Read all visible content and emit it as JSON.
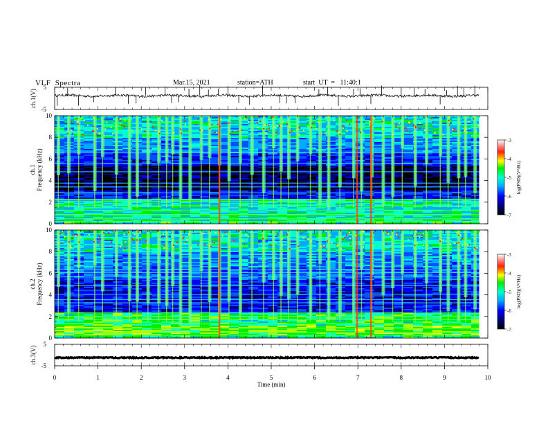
{
  "header": {
    "title": "VLF  Spectra",
    "date": "Mar.15, 2021",
    "station": "station=ATH",
    "start": "start  UT  =   11:40:1"
  },
  "chart_data": {
    "type": "heatmap",
    "xlabel": "Time  (min)",
    "x_ticks": [
      "0",
      "1",
      "2",
      "3",
      "4",
      "5",
      "6",
      "7",
      "8",
      "9",
      "10"
    ],
    "xlim": [
      0,
      10
    ],
    "data_end_min": 9.8,
    "panels": [
      {
        "id": "ch1-waveform",
        "type": "line",
        "ylabel": "ch.1(V)",
        "ylim": [
          -5,
          5
        ],
        "y_ticks": [
          "5",
          "-5"
        ],
        "baseline_v": 1.2,
        "spike_times_min": [
          0.06,
          0.3,
          0.55,
          0.9,
          1.4,
          1.7,
          1.88,
          2.1,
          2.55,
          2.7,
          2.85,
          3.1,
          3.35,
          3.55,
          3.78,
          4.0,
          4.25,
          4.5,
          4.8,
          5.2,
          5.35,
          5.55,
          6.1,
          6.3,
          6.55,
          6.9,
          7.05,
          7.3,
          7.55,
          8.0,
          8.3,
          8.55,
          8.9,
          9.05,
          9.3,
          9.45,
          9.7
        ]
      },
      {
        "id": "ch1-spectrogram",
        "type": "heatmap",
        "ylabel": "Frequency  (kHz)",
        "channel_label": "ch.1",
        "ylim": [
          0,
          10
        ],
        "y_ticks": [
          "0",
          "2",
          "4",
          "6",
          "8",
          "10"
        ],
        "colorbar": {
          "label": "log(PSD)(V²/Hz)",
          "range": [
            -7,
            -3
          ],
          "ticks": [
            "-3",
            "-4",
            "-5",
            "-6",
            "-7"
          ]
        },
        "bursts_min": [
          0.08,
          0.32,
          0.55,
          0.92,
          1.1,
          1.42,
          1.72,
          1.9,
          2.15,
          2.4,
          2.58,
          2.72,
          2.9,
          3.12,
          3.38,
          3.57,
          3.8,
          4.02,
          4.28,
          4.55,
          4.82,
          5.05,
          5.22,
          5.4,
          5.6,
          5.9,
          6.12,
          6.32,
          6.58,
          6.9,
          7.08,
          7.32,
          7.58,
          7.8,
          8.02,
          8.32,
          8.58,
          8.9,
          9.08,
          9.32,
          9.48,
          9.7
        ],
        "strong_lines_min": [
          3.8,
          6.98,
          7.3
        ]
      },
      {
        "id": "ch2-spectrogram",
        "type": "heatmap",
        "ylabel": "Frequency  (kHz)",
        "channel_label": "ch.2",
        "ylim": [
          0,
          10
        ],
        "y_ticks": [
          "0",
          "2",
          "4",
          "6",
          "8",
          "10"
        ],
        "colorbar": {
          "label": "log(PSD)(V²/Hz)",
          "range": [
            -7,
            -3
          ],
          "ticks": [
            "-3",
            "-4",
            "-5",
            "-6",
            "-7"
          ]
        },
        "bursts_min": [
          0.08,
          0.32,
          0.55,
          0.92,
          1.1,
          1.42,
          1.72,
          1.9,
          2.15,
          2.4,
          2.58,
          2.72,
          2.9,
          3.12,
          3.38,
          3.57,
          3.8,
          4.02,
          4.28,
          4.55,
          4.82,
          5.05,
          5.22,
          5.4,
          5.6,
          5.9,
          6.12,
          6.32,
          6.58,
          6.9,
          7.08,
          7.32,
          7.58,
          7.8,
          8.02,
          8.32,
          8.58,
          8.9,
          9.08,
          9.32,
          9.48,
          9.7
        ],
        "strong_lines_min": [
          3.8,
          6.98,
          7.3
        ]
      },
      {
        "id": "ch3-waveform",
        "type": "line",
        "ylabel": "ch.3(V)",
        "ylim": [
          -5,
          5
        ],
        "y_ticks": [
          "5",
          "-5"
        ],
        "baseline_v": -1.2,
        "spike_times_min": []
      }
    ]
  }
}
